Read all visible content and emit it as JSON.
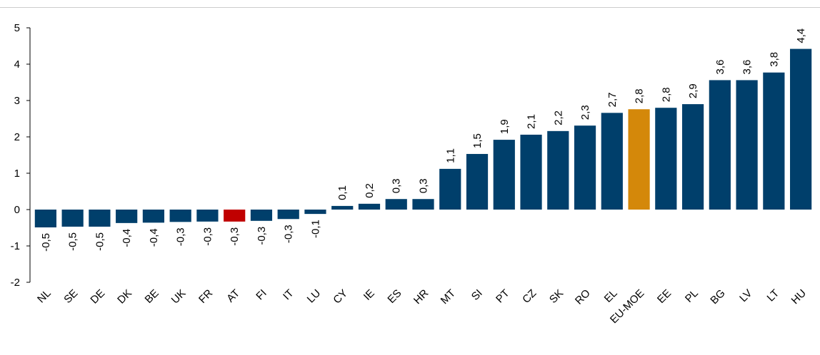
{
  "chart_data": {
    "type": "bar",
    "categories": [
      "NL",
      "SE",
      "DE",
      "DK",
      "BE",
      "UK",
      "FR",
      "AT",
      "FI",
      "IT",
      "LU",
      "CY",
      "IE",
      "ES",
      "HR",
      "MT",
      "SI",
      "PT",
      "CZ",
      "SK",
      "RO",
      "EL",
      "EU-MOE",
      "EE",
      "PL",
      "BG",
      "LV",
      "LT",
      "HU"
    ],
    "values": [
      -0.49,
      -0.47,
      -0.47,
      -0.37,
      -0.36,
      -0.34,
      -0.33,
      -0.33,
      -0.31,
      -0.26,
      -0.12,
      0.1,
      0.16,
      0.29,
      0.29,
      1.12,
      1.53,
      1.92,
      2.06,
      2.16,
      2.31,
      2.66,
      2.76,
      2.8,
      2.9,
      3.56,
      3.56,
      3.77,
      4.42
    ],
    "value_labels": [
      "-0,5",
      "-0,5",
      "-0,5",
      "-0,4",
      "-0,4",
      "-0,3",
      "-0,3",
      "-0,3",
      "-0,3",
      "-0,3",
      "-0,1",
      "0,1",
      "0,2",
      "0,3",
      "0,3",
      "1,1",
      "1,5",
      "1,9",
      "2,1",
      "2,2",
      "2,3",
      "2,7",
      "2,8",
      "2,8",
      "2,9",
      "3,6",
      "3,6",
      "3,8",
      "4,4"
    ],
    "colors": [
      "#003f6b",
      "#003f6b",
      "#003f6b",
      "#003f6b",
      "#003f6b",
      "#003f6b",
      "#003f6b",
      "#c00000",
      "#003f6b",
      "#003f6b",
      "#003f6b",
      "#003f6b",
      "#003f6b",
      "#003f6b",
      "#003f6b",
      "#003f6b",
      "#003f6b",
      "#003f6b",
      "#003f6b",
      "#003f6b",
      "#003f6b",
      "#003f6b",
      "#d4880a",
      "#003f6b",
      "#003f6b",
      "#003f6b",
      "#003f6b",
      "#003f6b",
      "#003f6b"
    ],
    "ylim": [
      -2,
      5
    ],
    "yticks": [
      -2,
      -1,
      0,
      1,
      2,
      3,
      4,
      5
    ],
    "grid": false
  }
}
